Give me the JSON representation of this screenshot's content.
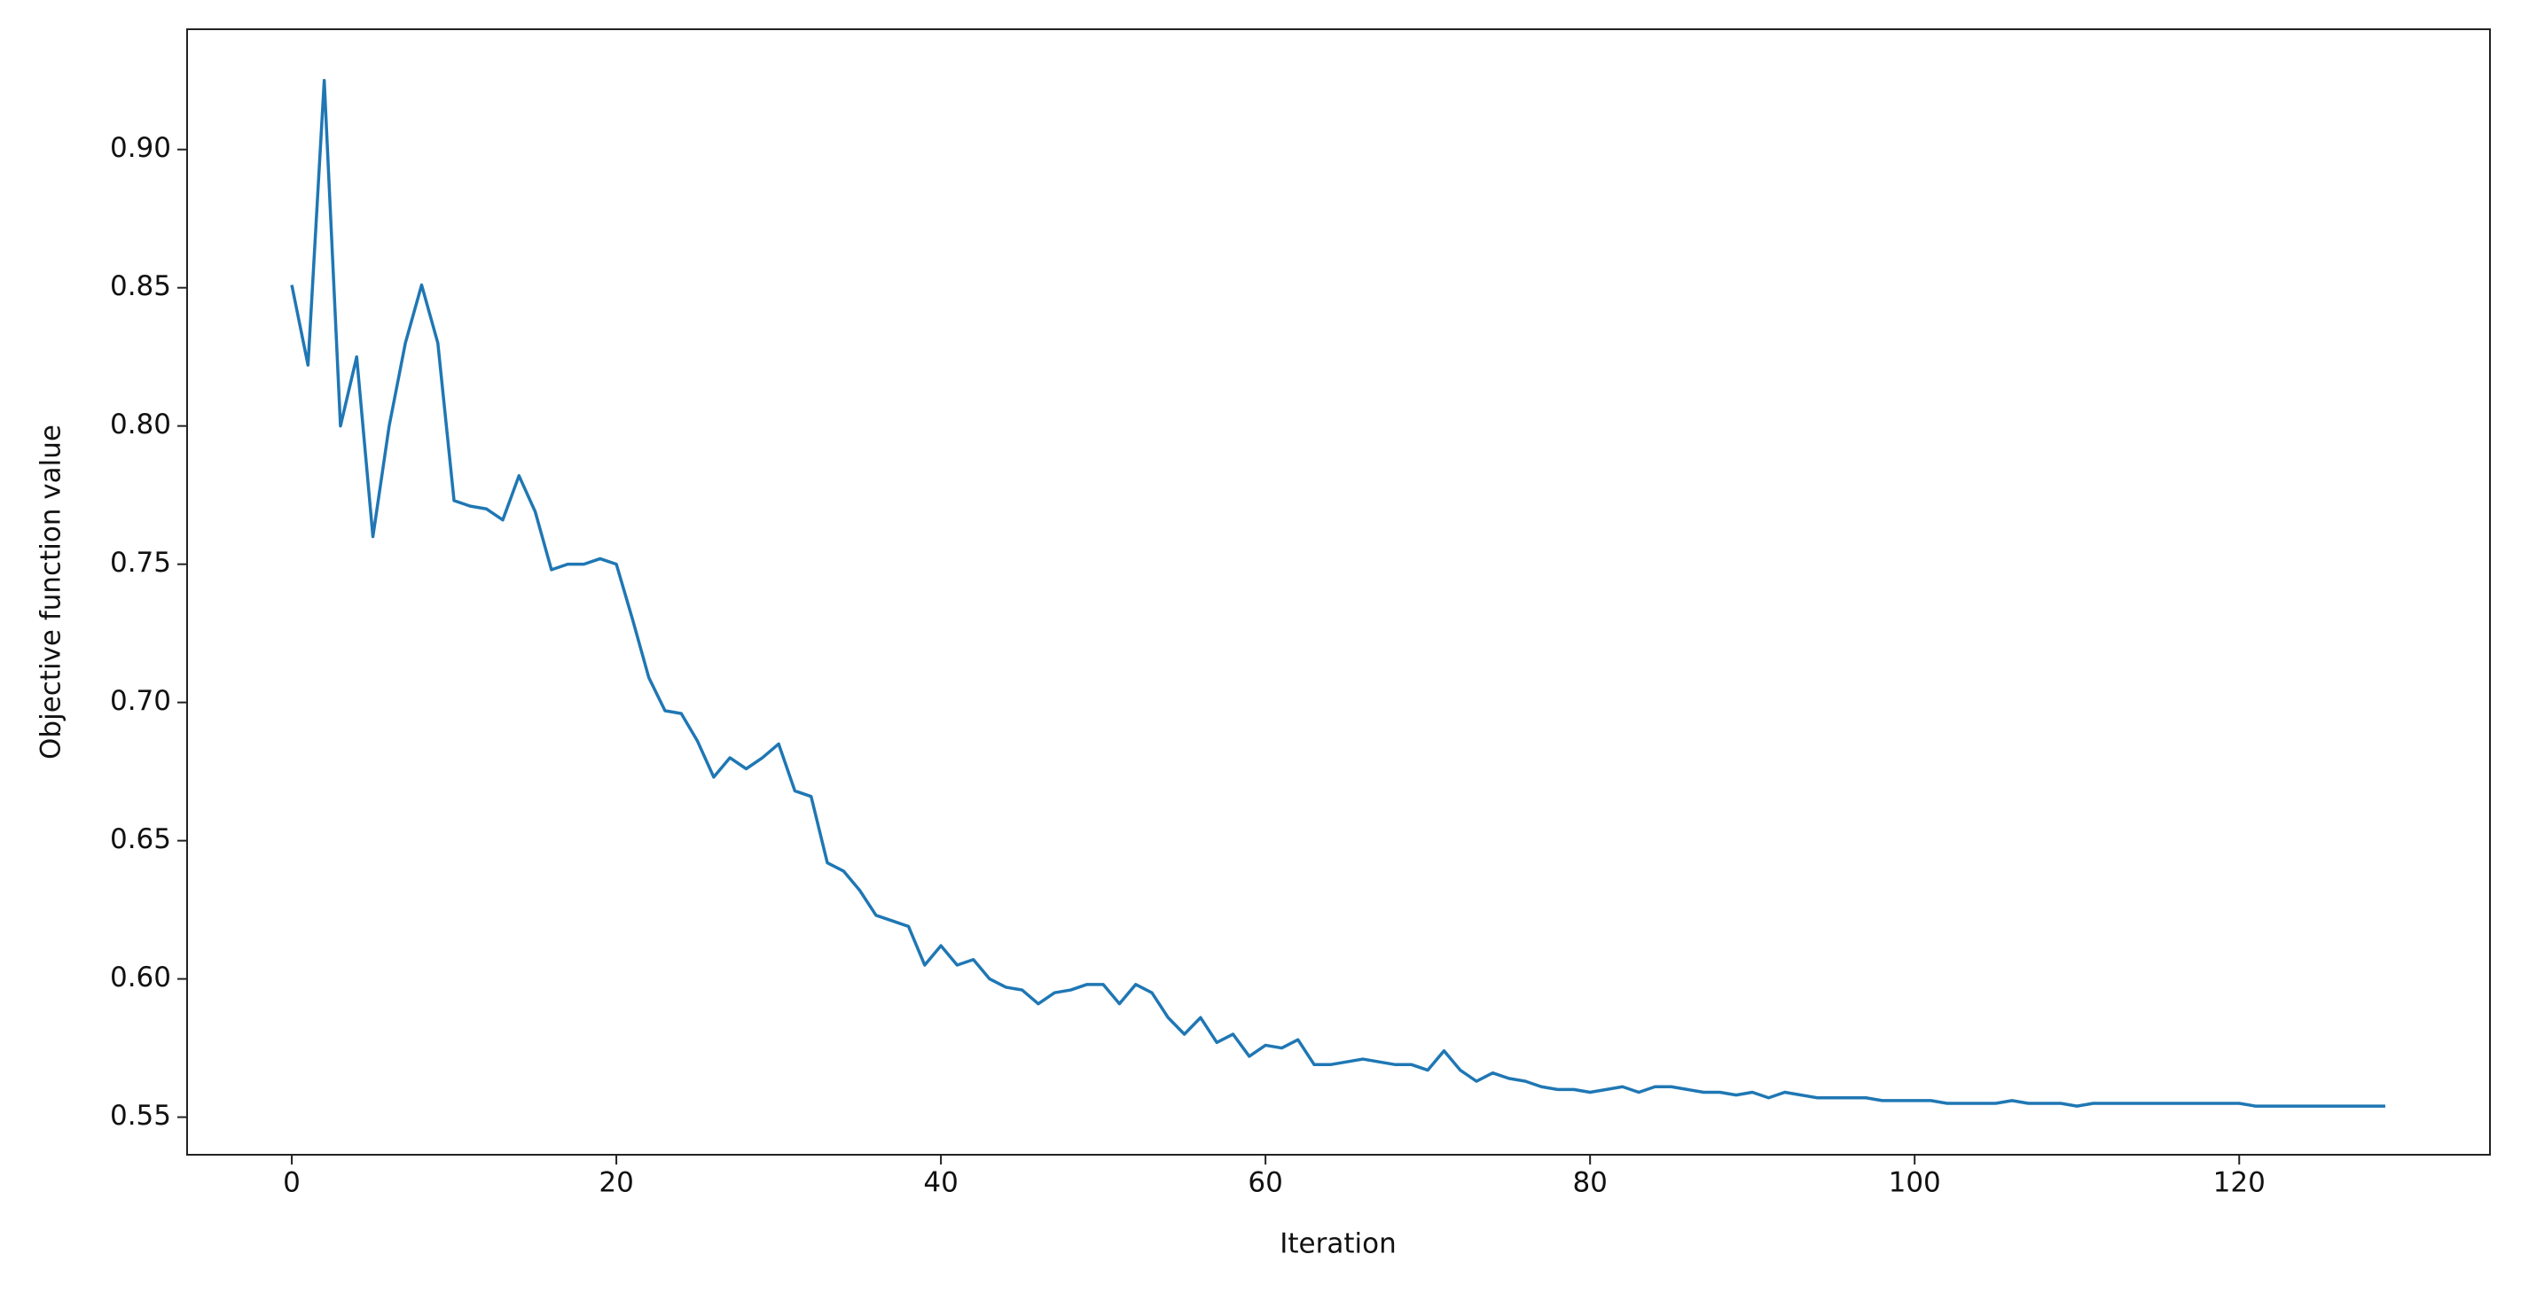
{
  "chart_data": {
    "type": "line",
    "xlabel": "Iteration",
    "ylabel": "Objective function value",
    "x": [
      0,
      1,
      2,
      3,
      4,
      5,
      6,
      7,
      8,
      9,
      10,
      11,
      12,
      13,
      14,
      15,
      16,
      17,
      18,
      19,
      20,
      21,
      22,
      23,
      24,
      25,
      26,
      27,
      28,
      29,
      30,
      31,
      32,
      33,
      34,
      35,
      36,
      37,
      38,
      39,
      40,
      41,
      42,
      43,
      44,
      45,
      46,
      47,
      48,
      49,
      50,
      51,
      52,
      53,
      54,
      55,
      56,
      57,
      58,
      59,
      60,
      61,
      62,
      63,
      64,
      65,
      66,
      67,
      68,
      69,
      70,
      71,
      72,
      73,
      74,
      75,
      76,
      77,
      78,
      79,
      80,
      81,
      82,
      83,
      84,
      85,
      86,
      87,
      88,
      89,
      90,
      91,
      92,
      93,
      94,
      95,
      96,
      97,
      98,
      99,
      100,
      101,
      102,
      103,
      104,
      105,
      106,
      107,
      108,
      109,
      110,
      111,
      112,
      113,
      114,
      115,
      116,
      117,
      118,
      119,
      120,
      121,
      122,
      123,
      124,
      125,
      126,
      127,
      128,
      129
    ],
    "series": [
      {
        "color": "#1f77b4",
        "values": [
          0.851,
          0.822,
          0.925,
          0.8,
          0.825,
          0.76,
          0.8,
          0.83,
          0.851,
          0.83,
          0.773,
          0.771,
          0.77,
          0.766,
          0.782,
          0.769,
          0.748,
          0.75,
          0.75,
          0.752,
          0.75,
          0.73,
          0.709,
          0.697,
          0.696,
          0.686,
          0.673,
          0.68,
          0.676,
          0.68,
          0.685,
          0.668,
          0.666,
          0.642,
          0.639,
          0.632,
          0.623,
          0.621,
          0.619,
          0.605,
          0.612,
          0.605,
          0.607,
          0.6,
          0.597,
          0.596,
          0.591,
          0.595,
          0.596,
          0.598,
          0.598,
          0.591,
          0.598,
          0.595,
          0.586,
          0.58,
          0.586,
          0.577,
          0.58,
          0.572,
          0.576,
          0.575,
          0.578,
          0.569,
          0.569,
          0.57,
          0.571,
          0.57,
          0.569,
          0.569,
          0.567,
          0.574,
          0.567,
          0.563,
          0.566,
          0.564,
          0.563,
          0.561,
          0.56,
          0.56,
          0.559,
          0.56,
          0.561,
          0.559,
          0.561,
          0.561,
          0.56,
          0.559,
          0.559,
          0.558,
          0.559,
          0.557,
          0.559,
          0.558,
          0.557,
          0.557,
          0.557,
          0.557,
          0.556,
          0.556,
          0.556,
          0.556,
          0.555,
          0.555,
          0.555,
          0.555,
          0.556,
          0.555,
          0.555,
          0.555,
          0.554,
          0.555,
          0.555,
          0.555,
          0.555,
          0.555,
          0.555,
          0.555,
          0.555,
          0.555,
          0.555,
          0.554,
          0.554,
          0.554,
          0.554,
          0.554,
          0.554,
          0.554,
          0.554,
          0.554
        ]
      }
    ],
    "xlim": [
      -6.45,
      135.45
    ],
    "xticks": [
      0,
      20,
      40,
      60,
      80,
      100,
      120
    ],
    "ylim": [
      0.5364,
      0.9435
    ],
    "yticks": [
      0.55,
      {
        "value": 0.6,
        "label": "0.60"
      },
      0.65,
      {
        "value": 0.7,
        "label": "0.70"
      },
      0.75,
      {
        "value": 0.8,
        "label": "0.80"
      },
      0.85,
      {
        "value": 0.9,
        "label": "0.90"
      }
    ],
    "grid": false
  }
}
